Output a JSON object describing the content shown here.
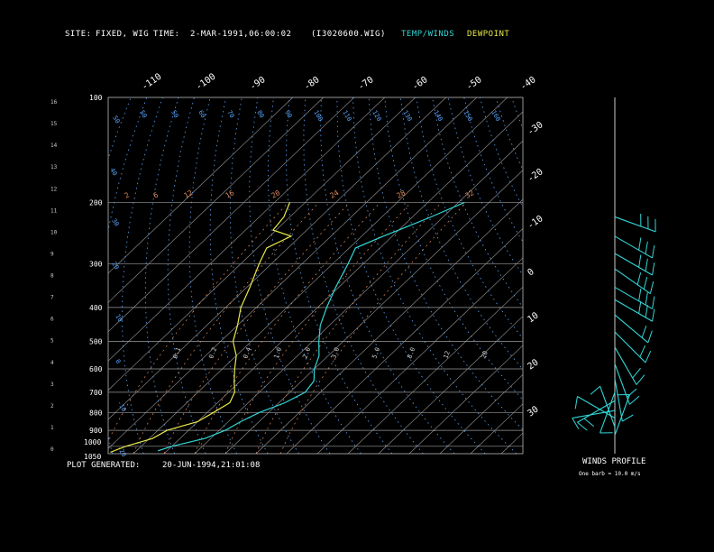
{
  "header": {
    "site_label": "SITE:",
    "site_value": "FIXED, WIG",
    "time_label": "TIME:",
    "time_value": "2-MAR-1991,06:00:02",
    "file": "(I3020600.WIG)",
    "legend_temp": "TEMP/WINDS",
    "legend_dew": "DEWPOINT"
  },
  "footer": {
    "plot_label": "PLOT GENERATED:",
    "plot_value": "20-JUN-1994,21:01:08",
    "winds_title": "WINDS PROFILE",
    "barb_note": "One barb = 10.0 m/s"
  },
  "colors": {
    "temp": "#33d6d6",
    "dew": "#e8e84a",
    "isobar": "#9a9a9a",
    "isotherm": "#9a9a9a",
    "dry_adiabat": "#5aa6ff",
    "mixing": "#e08a5a"
  },
  "chart_data": {
    "type": "line",
    "title": "",
    "pressure_levels": [
      "100",
      "200",
      "300",
      "400",
      "500",
      "600",
      "700",
      "800",
      "900",
      "1000",
      "1050"
    ],
    "height_ticks": [
      "16",
      "15",
      "14",
      "13",
      "12",
      "11",
      "10",
      "9",
      "8",
      "7",
      "6",
      "5",
      "4",
      "3",
      "2",
      "1",
      "0"
    ],
    "top_temp_labels": [
      "-110",
      "-100",
      "-90",
      "-80",
      "-70",
      "-60",
      "-50",
      "-40"
    ],
    "right_temp_labels": [
      "-30",
      "-20",
      "-10",
      "0",
      "10",
      "20",
      "30"
    ],
    "dry_adiabat_labels": [
      "50",
      "50",
      "50",
      "60",
      "70",
      "80",
      "90",
      "100",
      "110",
      "120",
      "130",
      "140",
      "150",
      "160",
      "40",
      "30",
      "20",
      "10",
      "0",
      "-10",
      "-20"
    ],
    "mixing_ratio_labels": [
      "2",
      "6",
      "12",
      "16",
      "20",
      "24",
      "28",
      "32"
    ],
    "mixing_low_labels": [
      "0.1",
      "0.2",
      "0.4",
      "1.0",
      "2.0",
      "3.0",
      "5.0",
      "8.0",
      "12",
      "20"
    ],
    "temp_profile": [
      [
        1030,
        -73
      ],
      [
        1000,
        -70
      ],
      [
        950,
        -62
      ],
      [
        900,
        -58
      ],
      [
        850,
        -56
      ],
      [
        800,
        -53
      ],
      [
        750,
        -48
      ],
      [
        700,
        -45
      ],
      [
        650,
        -46
      ],
      [
        600,
        -50
      ],
      [
        550,
        -53
      ],
      [
        500,
        -58
      ],
      [
        450,
        -63
      ],
      [
        400,
        -67
      ],
      [
        350,
        -71
      ],
      [
        300,
        -75
      ],
      [
        270,
        -78
      ],
      [
        250,
        -73
      ],
      [
        240,
        -70
      ],
      [
        220,
        -64
      ],
      [
        200,
        -58
      ]
    ],
    "dew_profile": [
      [
        1040,
        -88
      ],
      [
        1000,
        -85
      ],
      [
        950,
        -79
      ],
      [
        900,
        -77
      ],
      [
        850,
        -70
      ],
      [
        800,
        -68
      ],
      [
        750,
        -66
      ],
      [
        700,
        -68
      ],
      [
        650,
        -72
      ],
      [
        600,
        -76
      ],
      [
        550,
        -80
      ],
      [
        500,
        -86
      ],
      [
        450,
        -90
      ],
      [
        400,
        -95
      ],
      [
        350,
        -99
      ],
      [
        300,
        -104
      ],
      [
        270,
        -107
      ],
      [
        250,
        -103
      ],
      [
        240,
        -111
      ],
      [
        220,
        -112
      ],
      [
        200,
        -115
      ]
    ],
    "winds": [
      {
        "p": 220,
        "dir": 290,
        "spd": 25
      },
      {
        "p": 250,
        "dir": 300,
        "spd": 25
      },
      {
        "p": 280,
        "dir": 300,
        "spd": 25
      },
      {
        "p": 310,
        "dir": 305,
        "spd": 30
      },
      {
        "p": 350,
        "dir": 300,
        "spd": 25
      },
      {
        "p": 380,
        "dir": 300,
        "spd": 25
      },
      {
        "p": 420,
        "dir": 310,
        "spd": 20
      },
      {
        "p": 470,
        "dir": 315,
        "spd": 20
      },
      {
        "p": 520,
        "dir": 330,
        "spd": 15
      },
      {
        "p": 580,
        "dir": 340,
        "spd": 15
      },
      {
        "p": 640,
        "dir": 350,
        "spd": 10
      },
      {
        "p": 700,
        "dir": 20,
        "spd": 10
      },
      {
        "p": 740,
        "dir": 60,
        "spd": 15
      },
      {
        "p": 790,
        "dir": 80,
        "spd": 10
      },
      {
        "p": 830,
        "dir": 120,
        "spd": 10
      },
      {
        "p": 880,
        "dir": 160,
        "spd": 10
      },
      {
        "p": 930,
        "dir": 200,
        "spd": 5
      }
    ]
  }
}
